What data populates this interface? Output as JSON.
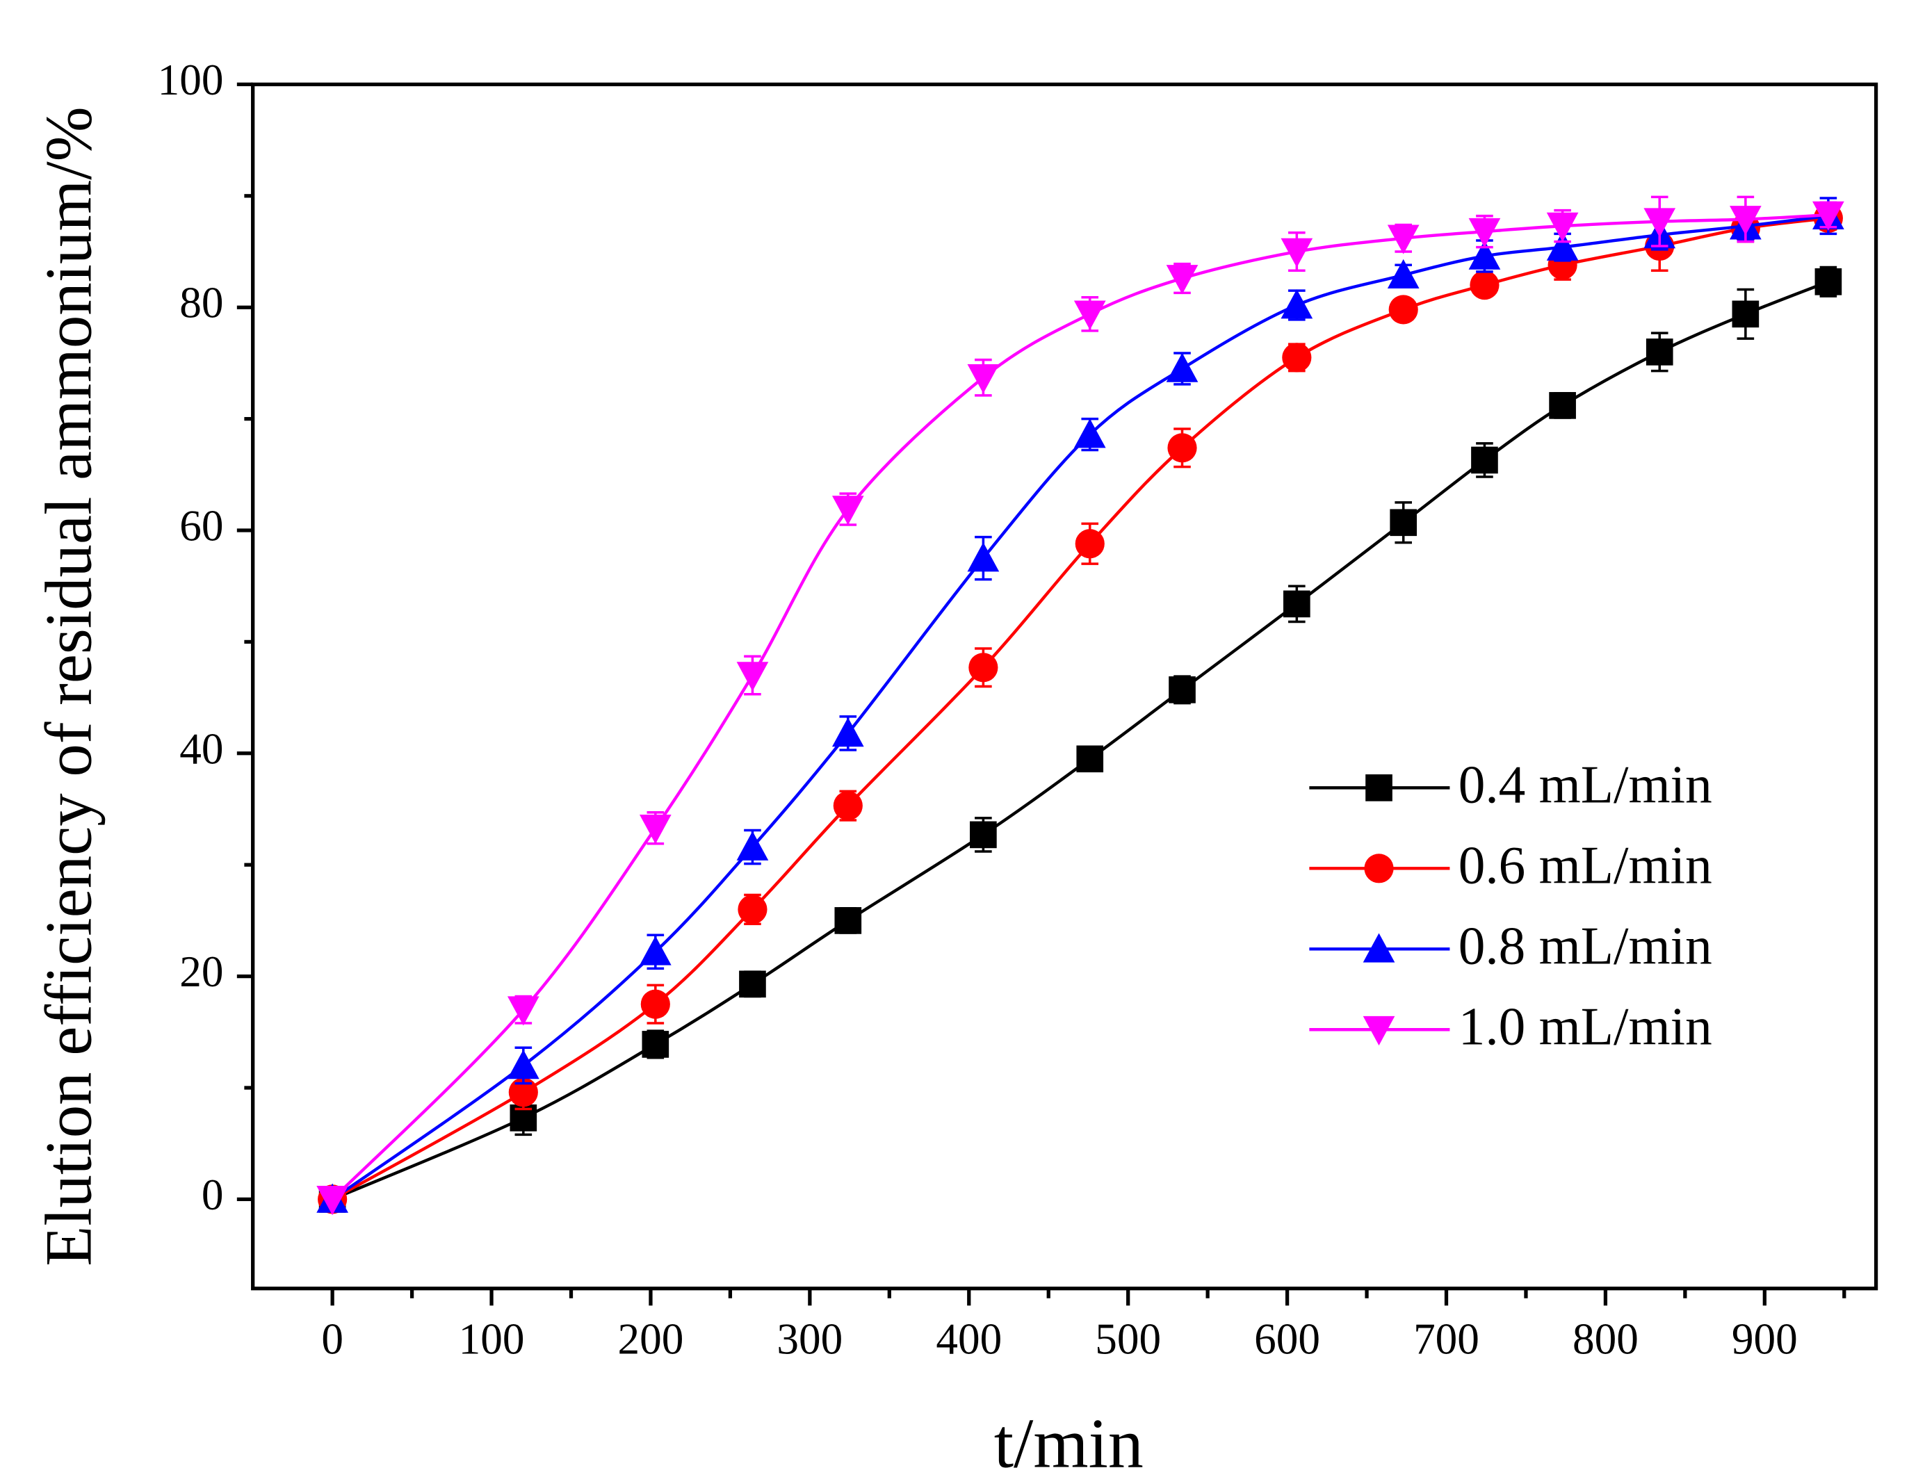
{
  "chart_data": {
    "type": "line",
    "x_label": "t/min",
    "y_label": "Elution efficiency of residual ammonium/%",
    "x": [
      0,
      120,
      203,
      264,
      324,
      409,
      476,
      534,
      606,
      673,
      724,
      773,
      834,
      888,
      940
    ],
    "series": [
      {
        "name": "0.4 mL/min",
        "color": "#000000",
        "marker": "square",
        "values": [
          0,
          7.3,
          13.9,
          19.3,
          25.0,
          32.7,
          39.5,
          45.7,
          53.4,
          60.7,
          66.3,
          71.2,
          76.0,
          79.4,
          82.3
        ],
        "errors": [
          0,
          1.5,
          1.2,
          1.1,
          1.1,
          1.5,
          0.8,
          1.2,
          1.6,
          1.8,
          1.5,
          1.1,
          1.7,
          2.2,
          1.3
        ]
      },
      {
        "name": "0.6 mL/min",
        "color": "#ff0000",
        "marker": "circle",
        "values": [
          0,
          9.6,
          17.5,
          26.0,
          35.3,
          47.7,
          58.8,
          67.4,
          75.5,
          79.8,
          82.0,
          83.8,
          85.5,
          87.1,
          88.0
        ],
        "errors": [
          0,
          1.5,
          1.7,
          1.3,
          1.3,
          1.7,
          1.8,
          1.7,
          1.2,
          0.9,
          0.9,
          1.3,
          2.2,
          1.2,
          1.0
        ]
      },
      {
        "name": "0.8 mL/min",
        "color": "#0000ff",
        "marker": "triangle-up",
        "values": [
          0,
          12.0,
          22.2,
          31.6,
          41.8,
          57.5,
          68.6,
          74.5,
          80.2,
          82.9,
          84.6,
          85.4,
          86.5,
          87.3,
          88.2
        ],
        "errors": [
          0,
          1.6,
          1.5,
          1.5,
          1.5,
          1.9,
          1.4,
          1.4,
          1.3,
          0.9,
          1.4,
          1.2,
          1.3,
          1.3,
          1.6
        ]
      },
      {
        "name": "1.0 mL/min",
        "color": "#ff00ff",
        "marker": "triangle-down",
        "values": [
          0,
          17.0,
          33.3,
          47.0,
          61.9,
          73.7,
          79.4,
          82.6,
          85.0,
          86.2,
          86.8,
          87.3,
          87.7,
          87.9,
          88.3
        ],
        "errors": [
          0,
          1.2,
          1.4,
          1.7,
          1.4,
          1.6,
          1.5,
          1.3,
          1.7,
          1.2,
          1.4,
          1.4,
          2.2,
          2.0,
          1.1
        ]
      }
    ],
    "xlim": [
      -50,
      970
    ],
    "xticks": [
      0,
      100,
      200,
      300,
      400,
      500,
      600,
      700,
      800,
      900
    ],
    "ylim": [
      -8,
      100
    ],
    "yticks": [
      0,
      20,
      40,
      60,
      80,
      100
    ],
    "legend": "right",
    "grid": false,
    "error_bars": true
  }
}
